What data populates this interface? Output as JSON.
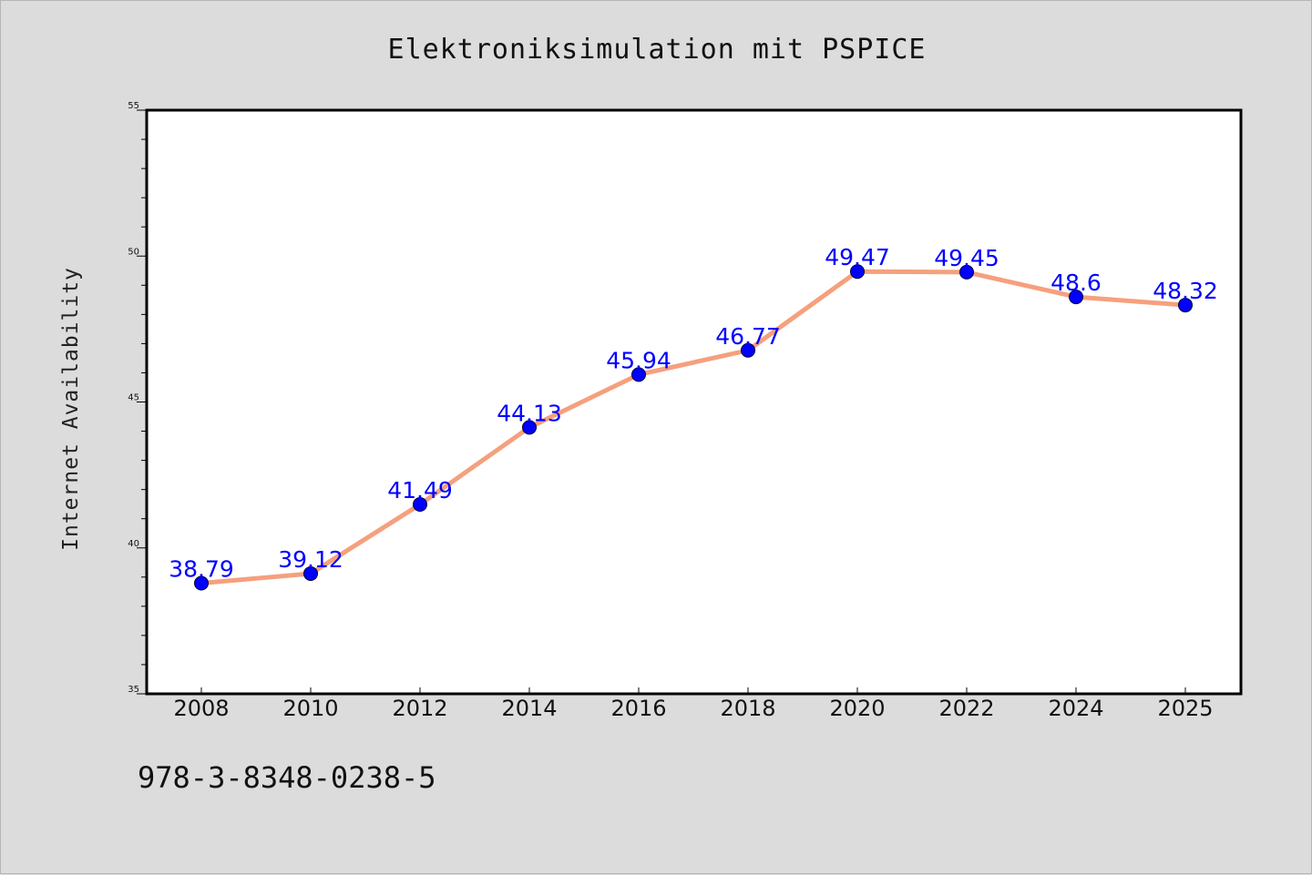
{
  "chart_data": {
    "type": "line",
    "title": "Elektroniksimulation mit PSPICE",
    "xlabel": "",
    "ylabel": "Internet Availability",
    "categories": [
      "2008",
      "2010",
      "2012",
      "2014",
      "2016",
      "2018",
      "2020",
      "2022",
      "2024",
      "2025"
    ],
    "values": [
      38.79,
      39.12,
      41.49,
      44.13,
      45.94,
      46.77,
      49.47,
      49.45,
      48.6,
      48.32
    ],
    "data_labels": [
      "38.79",
      "39.12",
      "41.49",
      "44.13",
      "45.94",
      "46.77",
      "49.47",
      "49.45",
      "48.6",
      "48.32"
    ],
    "ylim": [
      35,
      55
    ],
    "yticks": [
      "35",
      "40",
      "45",
      "50",
      "55"
    ],
    "grid": false,
    "legend": "none",
    "colors": {
      "line": "#f5a07e",
      "marker": "#0000ff",
      "data_label": "#0000ff",
      "background": "#dcdcdc",
      "plot_background": "#ffffff"
    }
  },
  "footer": {
    "isbn": "978-3-8348-0238-5"
  }
}
